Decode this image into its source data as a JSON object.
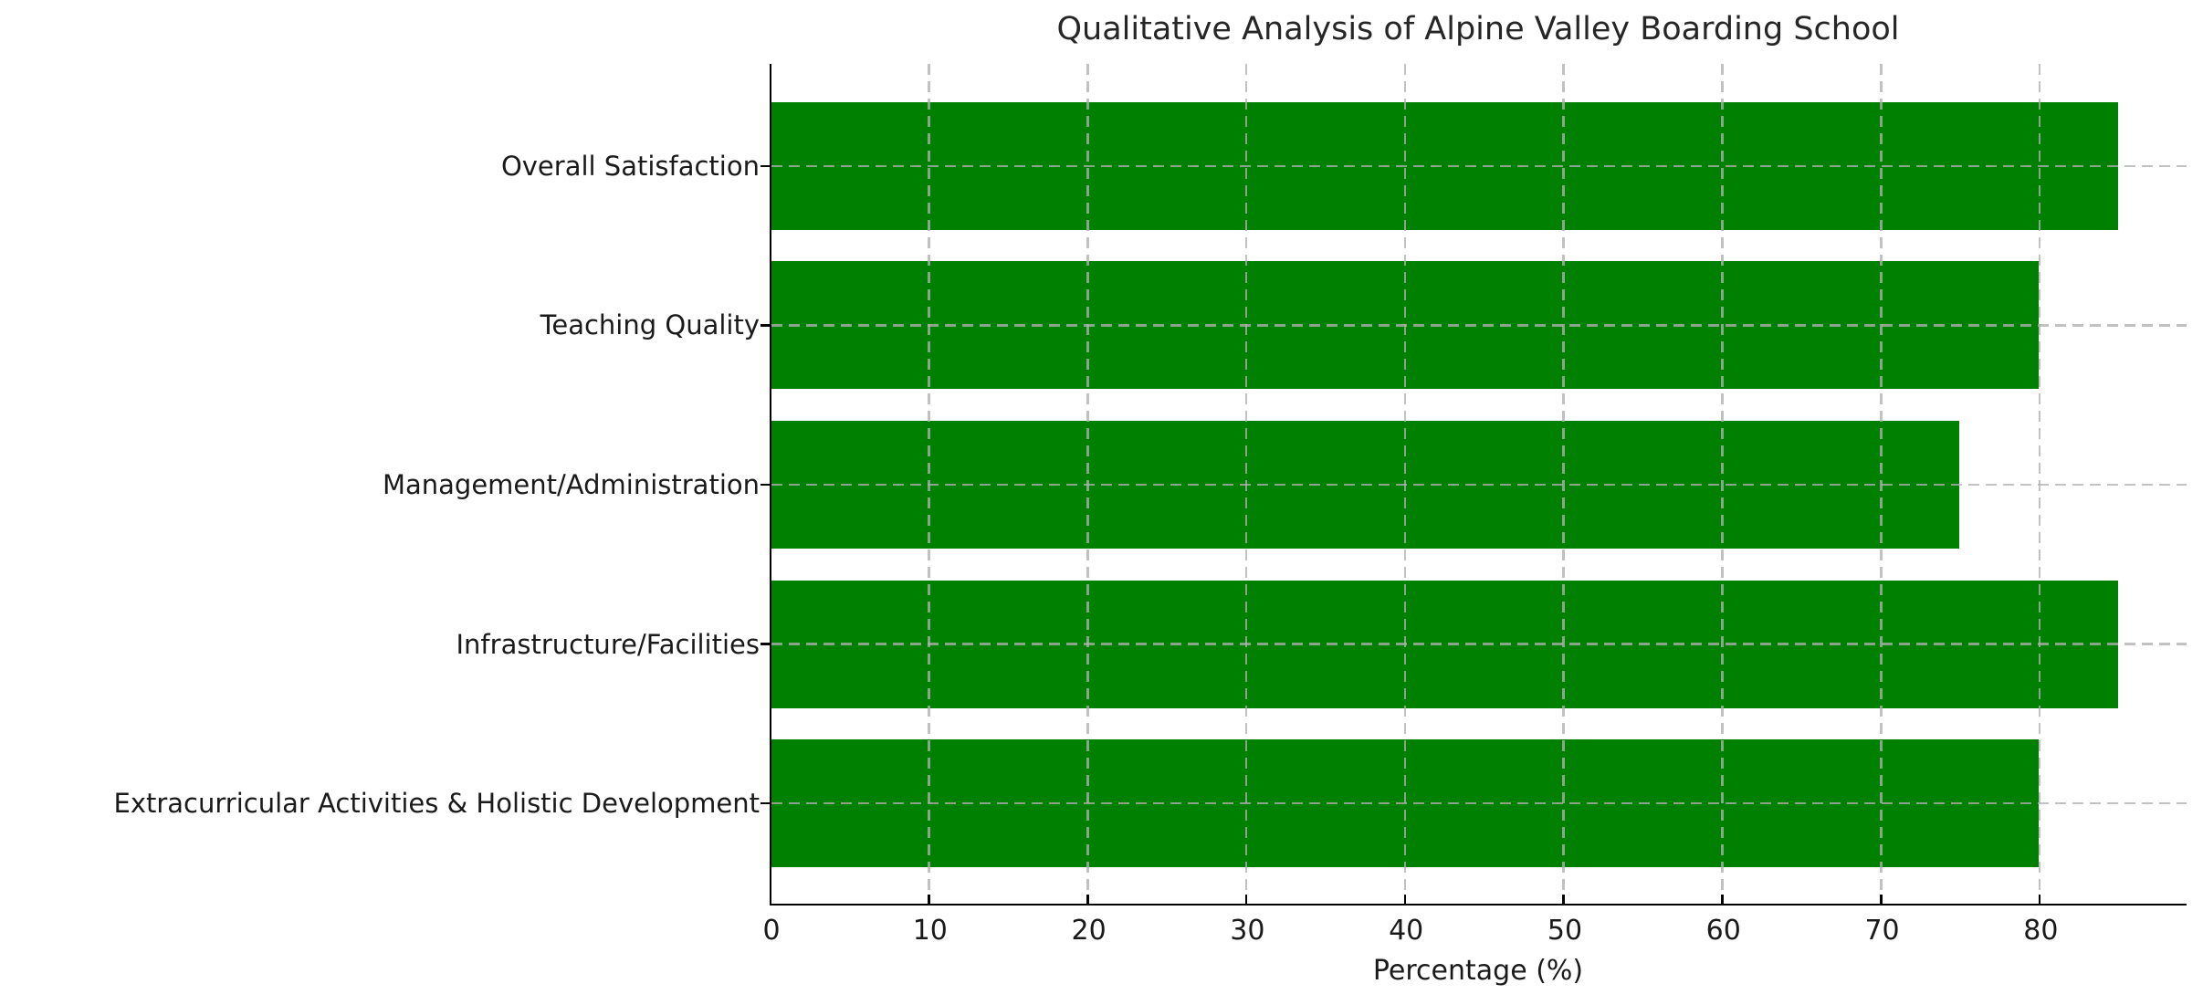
{
  "chart_data": {
    "type": "bar",
    "orientation": "horizontal",
    "title": "Qualitative Analysis of Alpine Valley Boarding School",
    "xlabel": "Percentage (%)",
    "ylabel": "",
    "categories": [
      "Overall Satisfaction",
      "Teaching Quality",
      "Management/Administration",
      "Infrastructure/Facilities",
      "Extracurricular Activities & Holistic Development"
    ],
    "values": [
      85,
      80,
      75,
      85,
      80
    ],
    "xlim": [
      0,
      89.3
    ],
    "xticks": [
      0,
      10,
      20,
      30,
      40,
      50,
      60,
      70,
      80
    ],
    "grid": "dashed gridlines on both axes, drawn over bars",
    "legend": "none",
    "colors": {
      "bar": "#008000",
      "grid": "#b0b0b0",
      "axis": "#000000",
      "title_text": "#262626",
      "tick_text": "#1a1a1a",
      "background": "#ffffff"
    }
  }
}
